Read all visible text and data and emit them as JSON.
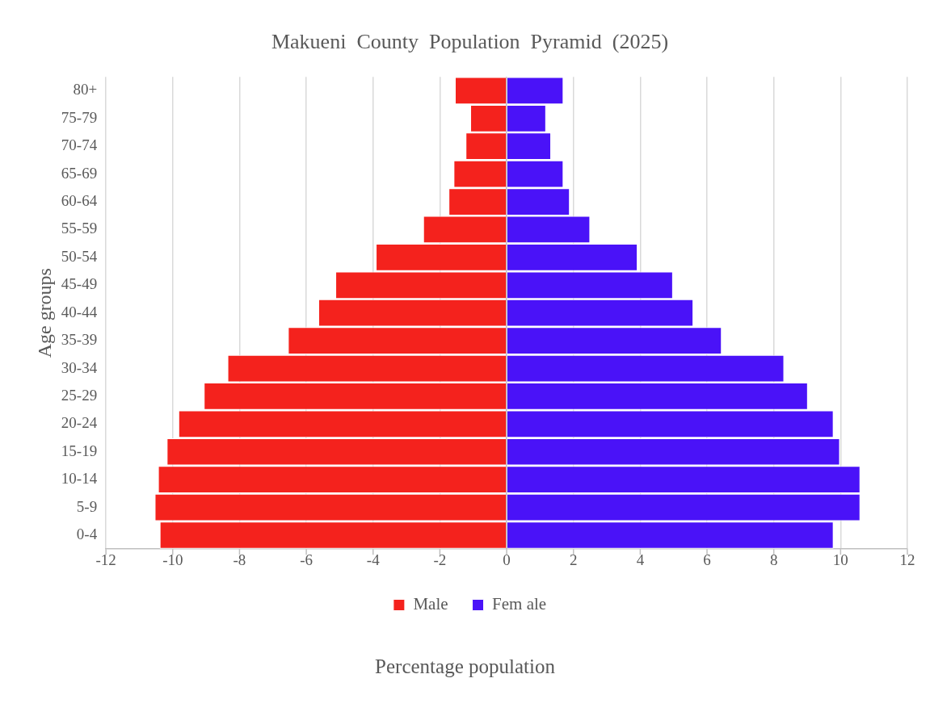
{
  "chart_data": {
    "type": "bar",
    "orientation": "horizontal",
    "stacked": true,
    "title": "Makueni  County  Population  Pyramid  (2025)",
    "xlabel": "Percentage population",
    "ylabel": "Age groups",
    "categories": [
      "80+",
      "75-79",
      "70-74",
      "65-69",
      "60-64",
      "55-59",
      "50-54",
      "45-49",
      "40-44",
      "35-39",
      "30-34",
      "25-29",
      "20-24",
      "15-19",
      "10-14",
      "5-9",
      "0-4"
    ],
    "series": [
      {
        "name": "Male",
        "color": "#f4221d",
        "values": [
          -1.55,
          -1.09,
          -1.23,
          -1.59,
          -1.74,
          -2.5,
          -3.92,
          -5.13,
          -5.64,
          -6.55,
          -8.36,
          -9.07,
          -9.83,
          -10.18,
          -10.44,
          -10.54,
          -10.39
        ]
      },
      {
        "name": "Fem ale",
        "color": "#4a12f8",
        "values": [
          1.7,
          1.18,
          1.33,
          1.7,
          1.89,
          2.5,
          3.92,
          4.98,
          5.59,
          6.44,
          8.31,
          9.02,
          9.79,
          9.98,
          10.59,
          10.59,
          9.79
        ]
      }
    ],
    "xlim": [
      -12,
      12
    ],
    "xticks": [
      -12,
      -10,
      -8,
      -6,
      -4,
      -2,
      0,
      2,
      4,
      6,
      8,
      10,
      12
    ],
    "grid": "x",
    "legend": "bottom"
  }
}
